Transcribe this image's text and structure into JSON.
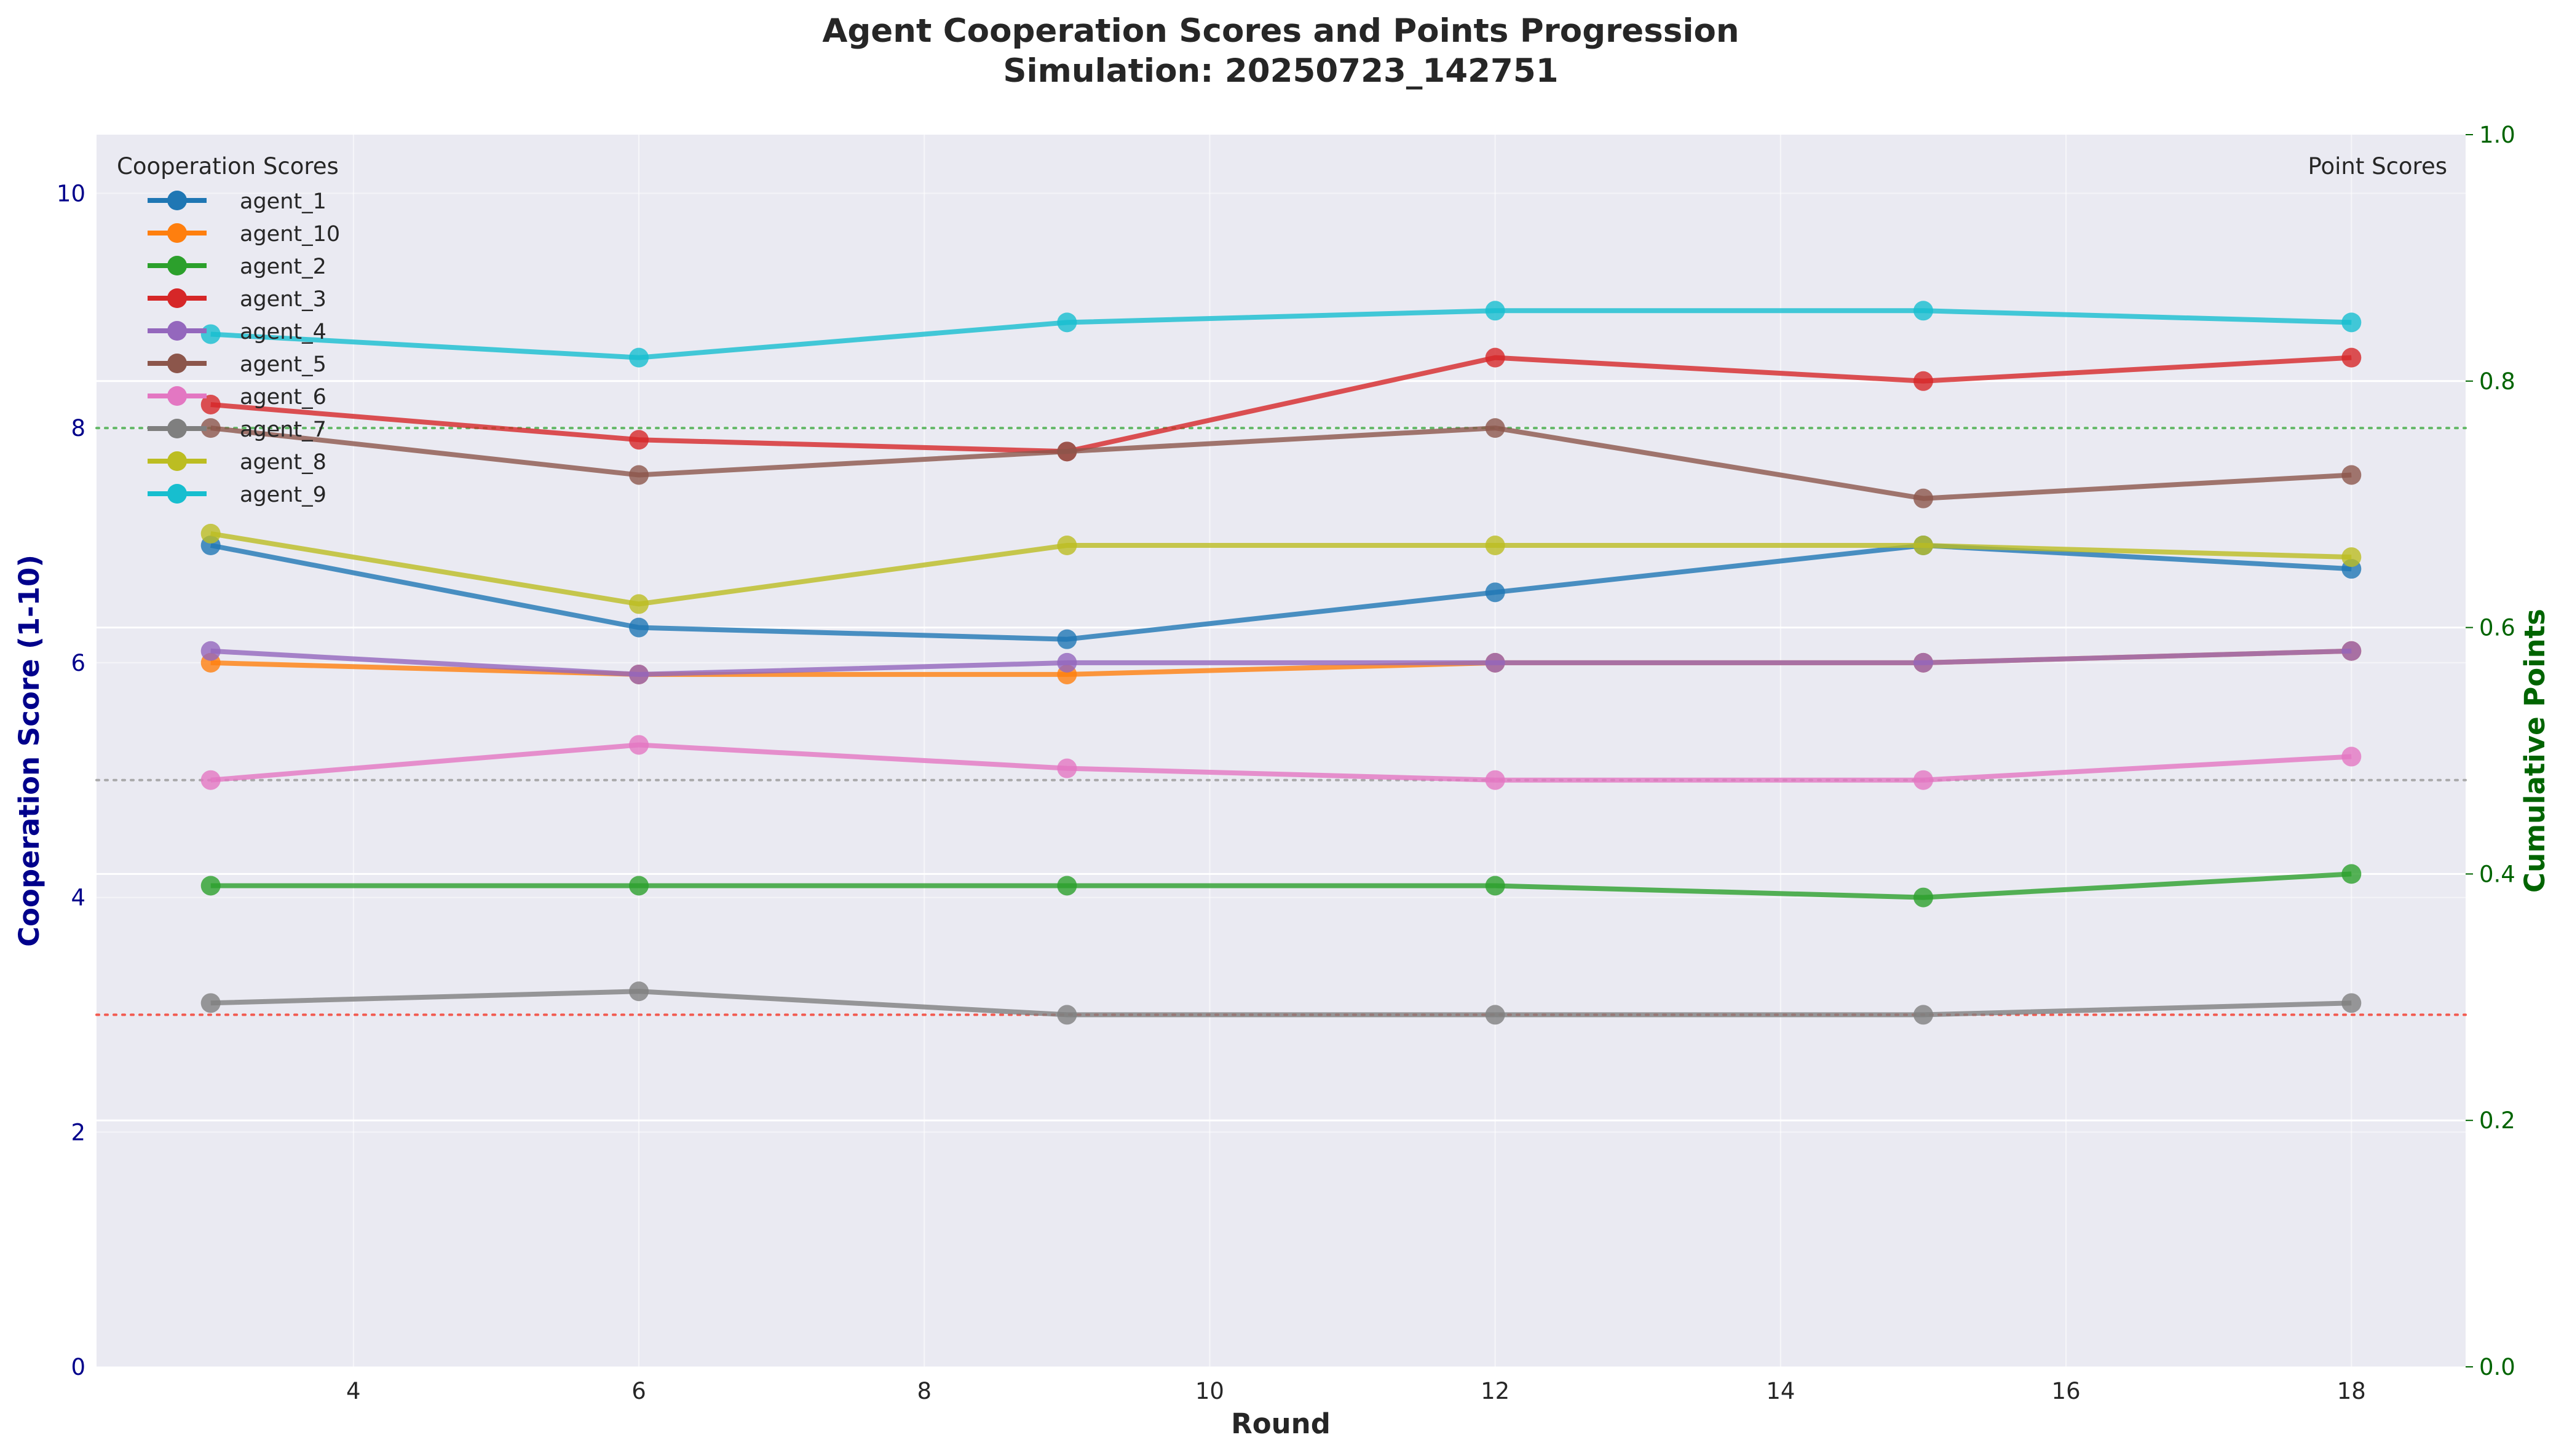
{
  "chart_data": {
    "type": "line",
    "title": "Agent Cooperation Scores and Points Progression",
    "subtitle": "Simulation: 20250723_142751",
    "xlabel": "Round",
    "ylabel": "Cooperation Score (1-10)",
    "y2label": "Cumulative Points",
    "xlim": [
      2.2,
      18.8
    ],
    "ylim": [
      0,
      10.5
    ],
    "y2lim": [
      0,
      1.0
    ],
    "x_ticks": [
      4,
      6,
      8,
      10,
      12,
      14,
      16,
      18
    ],
    "y_ticks": [
      0,
      2,
      4,
      6,
      8,
      10
    ],
    "y2_ticks": [
      "0.0",
      "0.2",
      "0.4",
      "0.6",
      "0.8",
      "1.0"
    ],
    "grid": true,
    "legend_title": "Cooperation Scores",
    "legend_position": "top-left",
    "legend2_title": "Point Scores",
    "legend2_position": "top-right",
    "reference_lines": [
      {
        "y": 8,
        "color": "#4caf50"
      },
      {
        "y": 5,
        "color": "#9e9e9e"
      },
      {
        "y": 3,
        "color": "#f44336"
      }
    ],
    "x": [
      3,
      6,
      9,
      12,
      15,
      18
    ],
    "series": [
      {
        "name": "agent_1",
        "color": "#1f77b4",
        "values": [
          7.0,
          6.3,
          6.2,
          6.6,
          7.0,
          6.8
        ]
      },
      {
        "name": "agent_10",
        "color": "#ff7f0e",
        "values": [
          6.0,
          5.9,
          5.9,
          6.0,
          6.0,
          6.1
        ]
      },
      {
        "name": "agent_2",
        "color": "#2ca02c",
        "values": [
          4.1,
          4.1,
          4.1,
          4.1,
          4.0,
          4.2
        ]
      },
      {
        "name": "agent_3",
        "color": "#d62728",
        "values": [
          8.2,
          7.9,
          7.8,
          8.6,
          8.4,
          8.6
        ]
      },
      {
        "name": "agent_4",
        "color": "#9467bd",
        "values": [
          6.1,
          5.9,
          6.0,
          6.0,
          6.0,
          6.1
        ]
      },
      {
        "name": "agent_5",
        "color": "#8c564b",
        "values": [
          8.0,
          7.6,
          7.8,
          8.0,
          7.4,
          7.6
        ]
      },
      {
        "name": "agent_6",
        "color": "#e377c2",
        "values": [
          5.0,
          5.3,
          5.1,
          5.0,
          5.0,
          5.2
        ]
      },
      {
        "name": "agent_7",
        "color": "#7f7f7f",
        "values": [
          3.1,
          3.2,
          3.0,
          3.0,
          3.0,
          3.1
        ]
      },
      {
        "name": "agent_8",
        "color": "#bcbd22",
        "values": [
          7.1,
          6.5,
          7.0,
          7.0,
          7.0,
          6.9
        ]
      },
      {
        "name": "agent_9",
        "color": "#17becf",
        "values": [
          8.8,
          8.6,
          8.9,
          9.0,
          9.0,
          8.9
        ]
      }
    ]
  },
  "colors": {
    "plot_background": "#eaeaf2",
    "left_axis": "#00008b",
    "right_axis": "#006400"
  }
}
